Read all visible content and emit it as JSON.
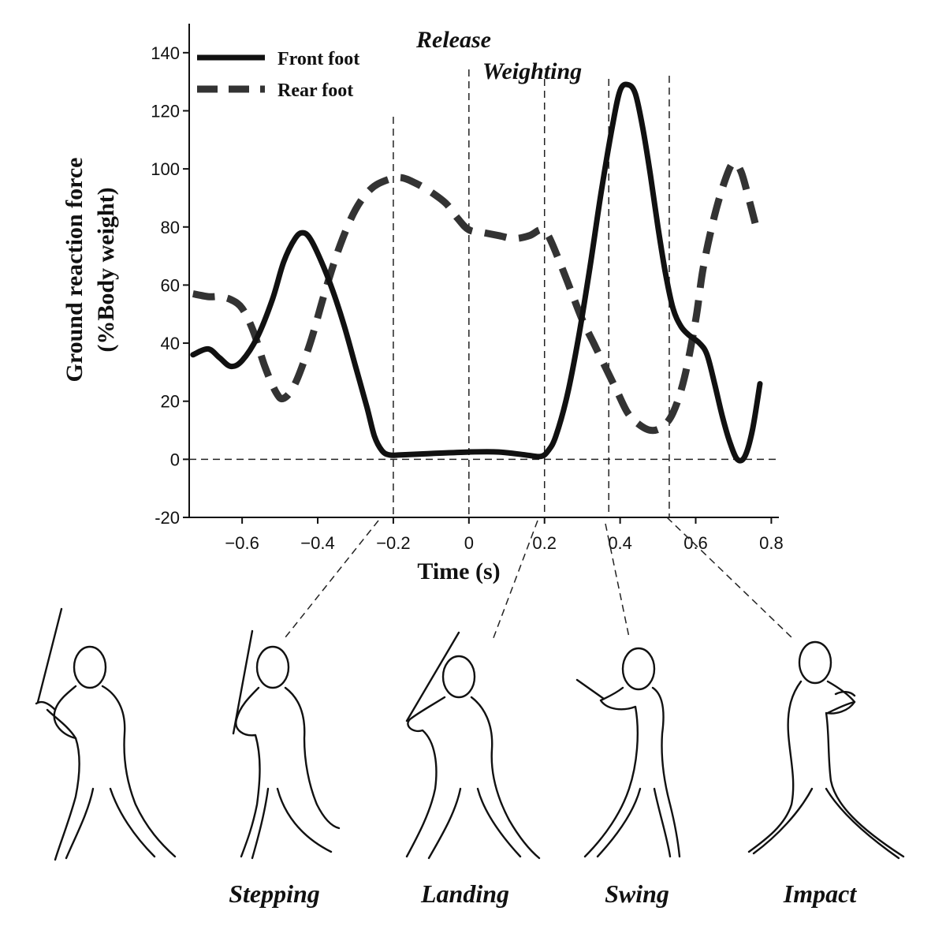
{
  "chart_data": {
    "type": "line",
    "xlabel": "Time (s)",
    "ylabel_line1": "Ground reaction force",
    "ylabel_line2": "(%Body weight)",
    "xlim": [
      -0.74,
      0.82
    ],
    "ylim": [
      -20,
      150
    ],
    "x_ticks": [
      -0.6,
      -0.4,
      -0.2,
      0,
      0.2,
      0.4,
      0.6,
      0.8
    ],
    "x_tick_labels": [
      "-0.6",
      "-0.4",
      "-0.2",
      "0",
      "0.2",
      "0.4",
      "0.6",
      "0.8"
    ],
    "y_ticks": [
      -20,
      0,
      20,
      40,
      60,
      80,
      100,
      120,
      140
    ],
    "y_tick_labels": [
      "-20",
      "0",
      "20",
      "40",
      "60",
      "80",
      "100",
      "120",
      "140"
    ],
    "legend_position": "top-left",
    "grid": false,
    "series": [
      {
        "name": "Front foot",
        "style": "solid",
        "color": "#111111",
        "points": [
          [
            -0.73,
            36
          ],
          [
            -0.69,
            38
          ],
          [
            -0.66,
            35
          ],
          [
            -0.63,
            32
          ],
          [
            -0.6,
            34
          ],
          [
            -0.56,
            42
          ],
          [
            -0.52,
            55
          ],
          [
            -0.49,
            68
          ],
          [
            -0.46,
            76
          ],
          [
            -0.44,
            78
          ],
          [
            -0.42,
            76
          ],
          [
            -0.39,
            68
          ],
          [
            -0.36,
            58
          ],
          [
            -0.33,
            46
          ],
          [
            -0.3,
            32
          ],
          [
            -0.27,
            18
          ],
          [
            -0.25,
            8
          ],
          [
            -0.23,
            3
          ],
          [
            -0.21,
            1.5
          ],
          [
            -0.18,
            1.5
          ],
          [
            -0.1,
            2
          ],
          [
            0,
            2.5
          ],
          [
            0.08,
            2.5
          ],
          [
            0.15,
            1.5
          ],
          [
            0.19,
            1
          ],
          [
            0.21,
            3
          ],
          [
            0.23,
            8
          ],
          [
            0.26,
            22
          ],
          [
            0.29,
            42
          ],
          [
            0.32,
            66
          ],
          [
            0.35,
            92
          ],
          [
            0.38,
            115
          ],
          [
            0.4,
            127
          ],
          [
            0.42,
            129
          ],
          [
            0.44,
            126
          ],
          [
            0.46,
            114
          ],
          [
            0.48,
            98
          ],
          [
            0.5,
            80
          ],
          [
            0.52,
            64
          ],
          [
            0.54,
            52
          ],
          [
            0.56,
            46
          ],
          [
            0.58,
            43
          ],
          [
            0.61,
            40
          ],
          [
            0.63,
            36
          ],
          [
            0.65,
            26
          ],
          [
            0.67,
            15
          ],
          [
            0.69,
            6
          ],
          [
            0.71,
            0
          ],
          [
            0.73,
            1
          ],
          [
            0.75,
            10
          ],
          [
            0.77,
            26
          ]
        ]
      },
      {
        "name": "Rear foot",
        "style": "dashed",
        "color": "#333333",
        "points": [
          [
            -0.73,
            57
          ],
          [
            -0.69,
            56
          ],
          [
            -0.66,
            56
          ],
          [
            -0.63,
            55
          ],
          [
            -0.6,
            52
          ],
          [
            -0.57,
            44
          ],
          [
            -0.54,
            32
          ],
          [
            -0.51,
            23
          ],
          [
            -0.49,
            21
          ],
          [
            -0.46,
            26
          ],
          [
            -0.42,
            40
          ],
          [
            -0.38,
            58
          ],
          [
            -0.34,
            74
          ],
          [
            -0.3,
            86
          ],
          [
            -0.26,
            93
          ],
          [
            -0.22,
            96
          ],
          [
            -0.18,
            97
          ],
          [
            -0.14,
            95
          ],
          [
            -0.1,
            92
          ],
          [
            -0.06,
            88
          ],
          [
            -0.03,
            83
          ],
          [
            0,
            79
          ],
          [
            0.04,
            78
          ],
          [
            0.08,
            77
          ],
          [
            0.12,
            76
          ],
          [
            0.16,
            77
          ],
          [
            0.19,
            79
          ],
          [
            0.21,
            77
          ],
          [
            0.24,
            68
          ],
          [
            0.27,
            58
          ],
          [
            0.3,
            48
          ],
          [
            0.33,
            40
          ],
          [
            0.36,
            32
          ],
          [
            0.39,
            24
          ],
          [
            0.42,
            16
          ],
          [
            0.45,
            12
          ],
          [
            0.48,
            10
          ],
          [
            0.51,
            11
          ],
          [
            0.54,
            16
          ],
          [
            0.57,
            28
          ],
          [
            0.6,
            48
          ],
          [
            0.62,
            66
          ],
          [
            0.65,
            84
          ],
          [
            0.68,
            97
          ],
          [
            0.7,
            102
          ],
          [
            0.72,
            99
          ],
          [
            0.74,
            90
          ],
          [
            0.76,
            80
          ]
        ]
      }
    ],
    "events": [
      {
        "x": -0.2,
        "label": ""
      },
      {
        "x": 0.0,
        "label": "Release"
      },
      {
        "x": 0.2,
        "label": "Weighting"
      },
      {
        "x": 0.37,
        "label": ""
      },
      {
        "x": 0.53,
        "label": ""
      }
    ]
  },
  "phases": [
    {
      "label": ""
    },
    {
      "label": "Stepping"
    },
    {
      "label": "Landing"
    },
    {
      "label": "Swing"
    },
    {
      "label": "Impact"
    }
  ]
}
